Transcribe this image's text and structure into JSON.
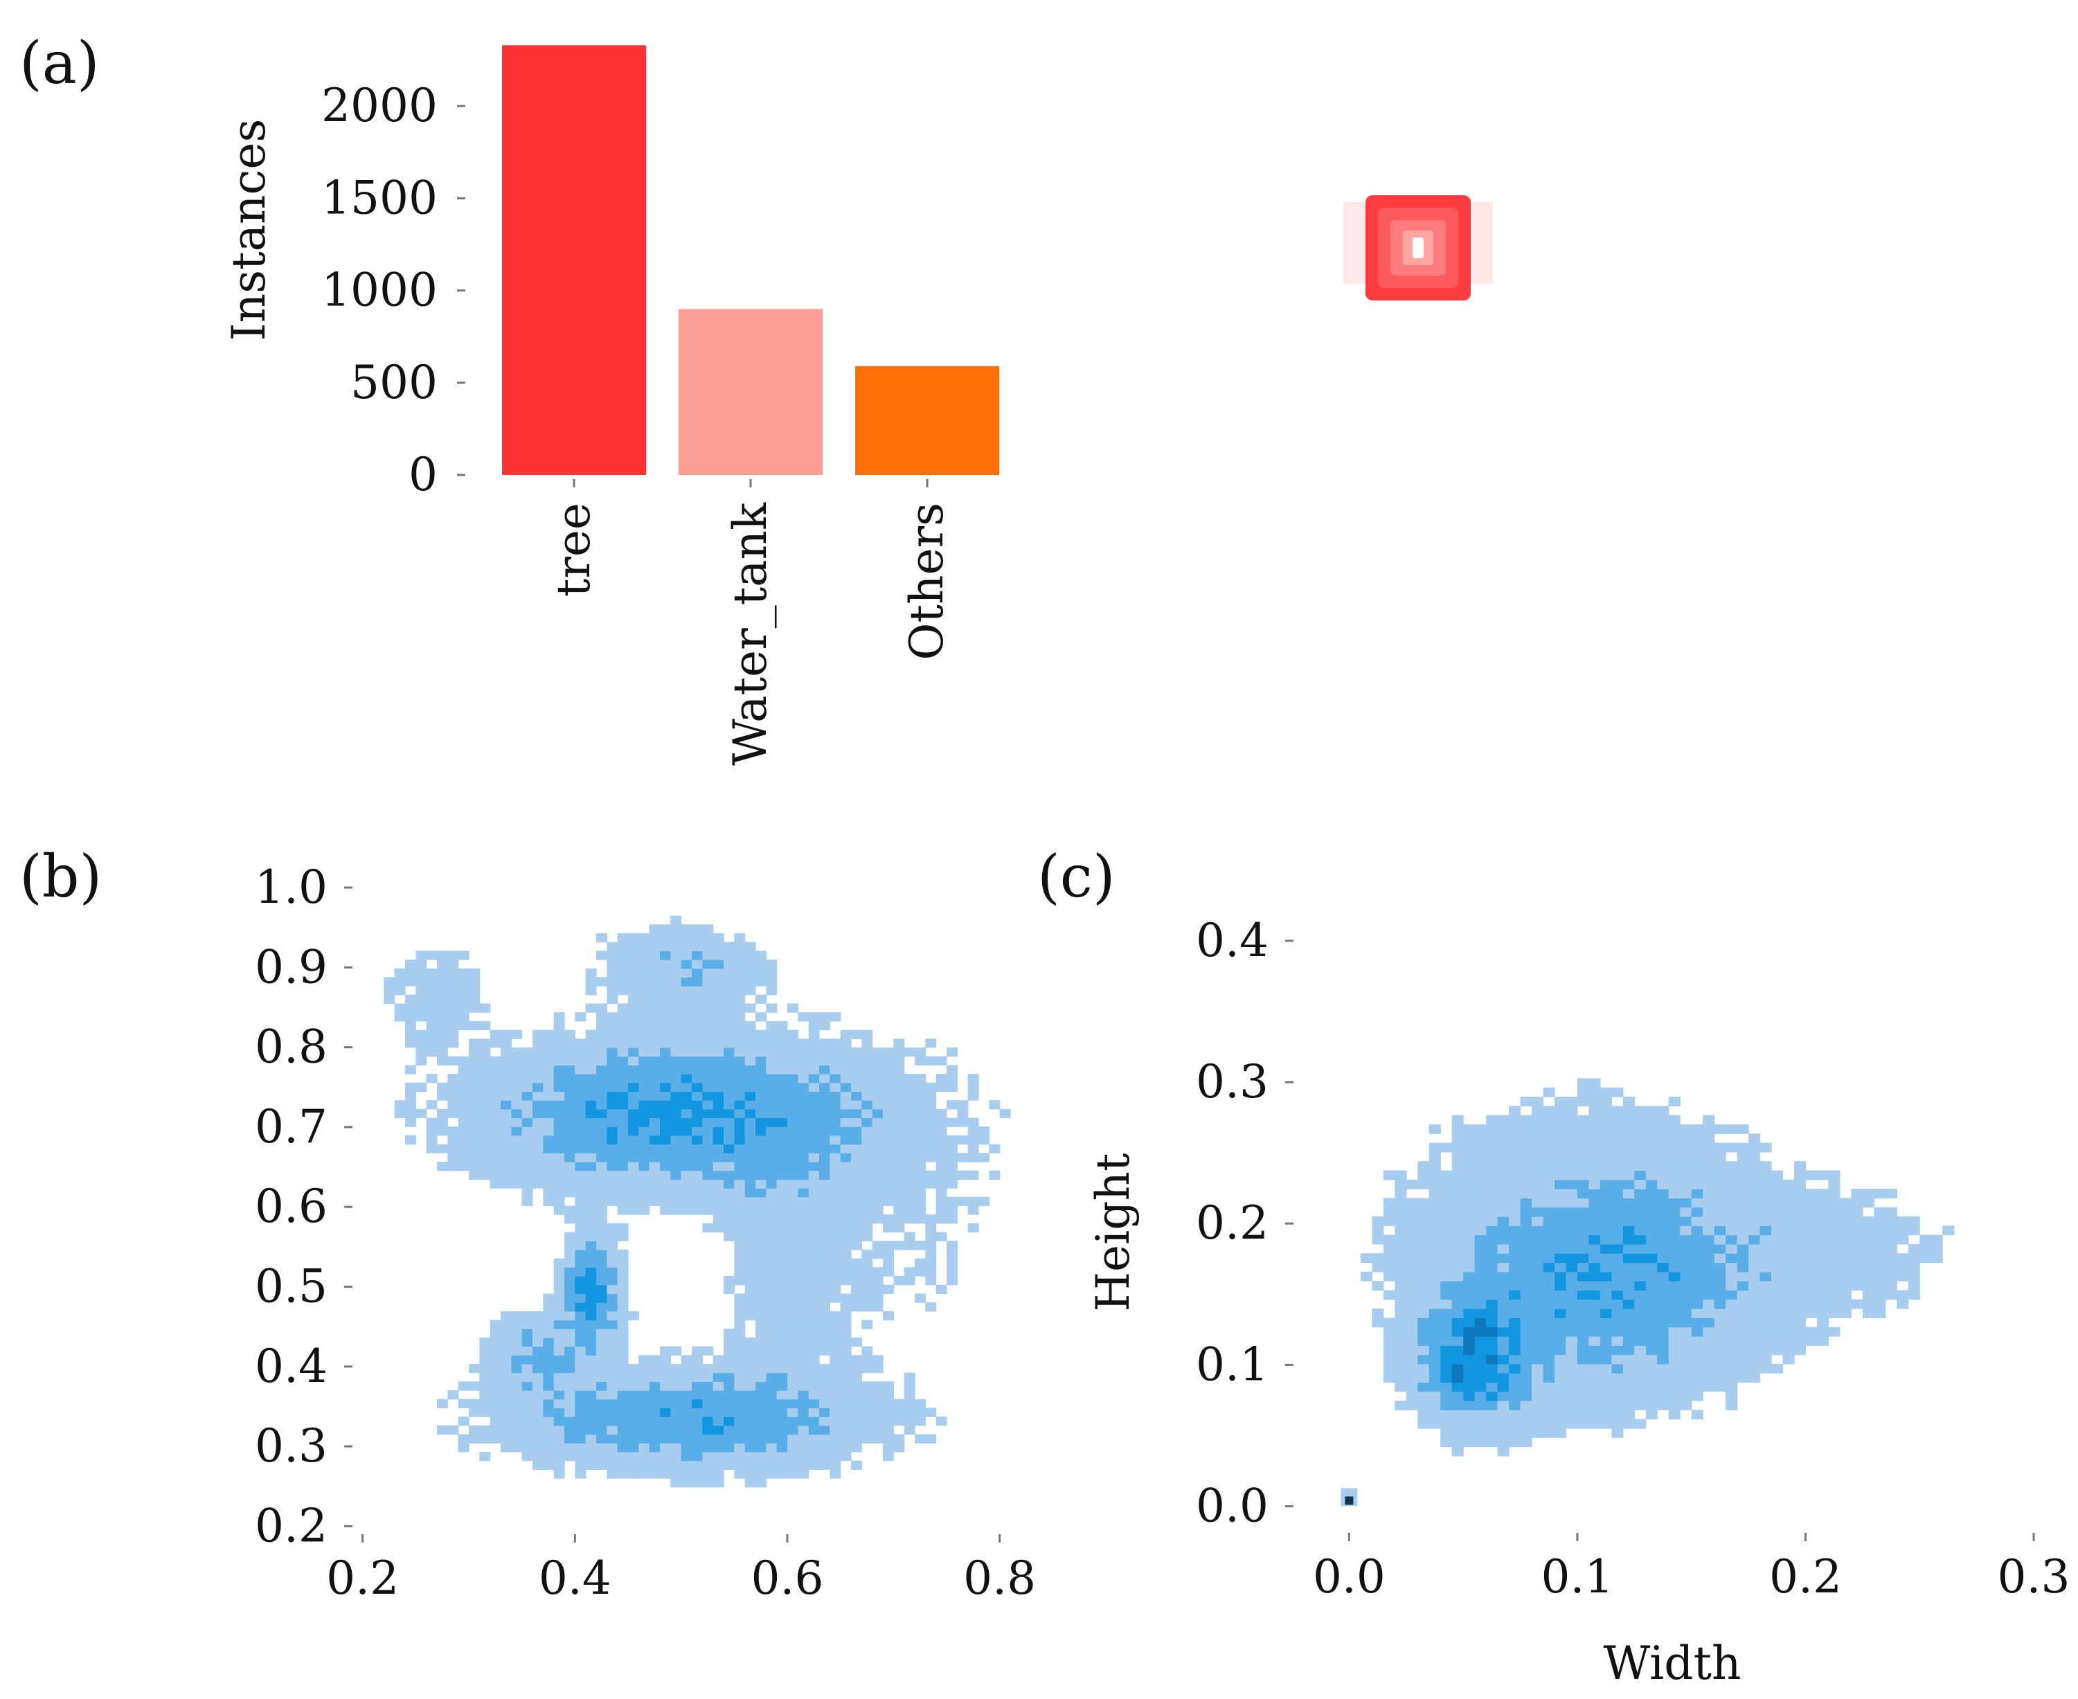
{
  "chart_data": [
    {
      "panel": "(a)",
      "type": "bar",
      "categories": [
        "tree",
        "Water_tank",
        "Others"
      ],
      "values": [
        2330,
        900,
        590
      ],
      "colors": [
        "#ff3236",
        "#fd9e97",
        "#ff7009"
      ],
      "ylabel": "Instances",
      "xlabel": "",
      "ylim": [
        0,
        2350
      ],
      "yticks": [
        "0",
        "500",
        "1000",
        "1500",
        "2000"
      ],
      "ytick_values": [
        0,
        500,
        1000,
        1500,
        2000
      ]
    },
    {
      "panel": "(b)",
      "type": "heatmap",
      "xlabel": "",
      "ylabel": "",
      "xlim": [
        0.18,
        0.9
      ],
      "ylim": [
        0.15,
        1.02
      ],
      "xticks": [
        "0.2",
        "0.4",
        "0.6",
        "0.8"
      ],
      "xtick_values": [
        0.2,
        0.4,
        0.6,
        0.8
      ],
      "yticks": [
        "0.2",
        "0.3",
        "0.4",
        "0.5",
        "0.6",
        "0.7",
        "0.8",
        "0.9",
        "1.0"
      ],
      "ytick_values": [
        0.2,
        0.3,
        0.4,
        0.5,
        0.6,
        0.7,
        0.8,
        0.9,
        1.0
      ],
      "clusters": [
        {
          "x": 0.5,
          "y": 0.715,
          "sx": 0.12,
          "sy": 0.06,
          "w": 1.0
        },
        {
          "x": 0.5,
          "y": 0.9,
          "sx": 0.05,
          "sy": 0.035,
          "w": 0.45
        },
        {
          "x": 0.415,
          "y": 0.49,
          "sx": 0.018,
          "sy": 0.045,
          "w": 1.1
        },
        {
          "x": 0.36,
          "y": 0.42,
          "sx": 0.03,
          "sy": 0.03,
          "w": 0.5
        },
        {
          "x": 0.5,
          "y": 0.335,
          "sx": 0.11,
          "sy": 0.04,
          "w": 0.8
        },
        {
          "x": 0.6,
          "y": 0.52,
          "sx": 0.04,
          "sy": 0.1,
          "w": 0.3
        },
        {
          "x": 0.27,
          "y": 0.87,
          "sx": 0.03,
          "sy": 0.05,
          "w": 0.25
        },
        {
          "x": 0.72,
          "y": 0.6,
          "sx": 0.07,
          "sy": 0.15,
          "w": 0.12
        }
      ],
      "colorscale": [
        "#a9cdee",
        "#5aaee8",
        "#1296e0",
        "#0f78bd",
        "#1a4d78",
        "#16314c"
      ]
    },
    {
      "panel": "(c)",
      "type": "heatmap",
      "xlabel": "Width",
      "ylabel": "Height",
      "xlim": [
        -0.015,
        0.3
      ],
      "ylim": [
        -0.01,
        0.42
      ],
      "xticks": [
        "0.0",
        "0.1",
        "0.2",
        "0.3"
      ],
      "xtick_values": [
        0.0,
        0.1,
        0.2,
        0.3
      ],
      "yticks": [
        "0.0",
        "0.1",
        "0.2",
        "0.3",
        "0.4"
      ],
      "ytick_values": [
        0.0,
        0.1,
        0.2,
        0.3,
        0.4
      ],
      "clusters": [
        {
          "x": 0.055,
          "y": 0.105,
          "sx": 0.015,
          "sy": 0.028,
          "w": 1.3
        },
        {
          "x": 0.11,
          "y": 0.16,
          "sx": 0.045,
          "sy": 0.05,
          "w": 0.9
        },
        {
          "x": 0.2,
          "y": 0.18,
          "sx": 0.045,
          "sy": 0.03,
          "w": 0.22
        },
        {
          "x": 0.1,
          "y": 0.24,
          "sx": 0.05,
          "sy": 0.04,
          "w": 0.15
        }
      ],
      "colorscale": [
        "#a9cdee",
        "#5aaee8",
        "#1296e0",
        "#0f78bd",
        "#1a4d78",
        "#16314c"
      ]
    }
  ],
  "legend_icon": {
    "name": "red-box-icon",
    "color": "#ff3236"
  }
}
